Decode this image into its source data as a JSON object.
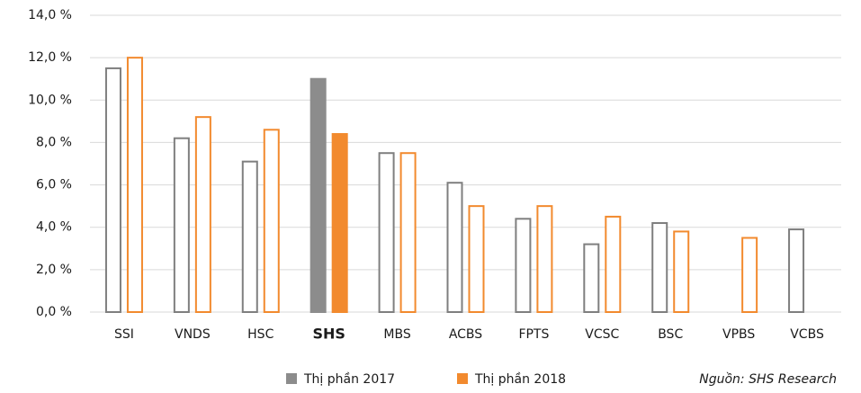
{
  "chart_data": {
    "type": "bar",
    "categories": [
      "SSI",
      "VNDS",
      "HSC",
      "SHS",
      "MBS",
      "ACBS",
      "FPTS",
      "VCSC",
      "BSC",
      "VPBS",
      "VCBS"
    ],
    "series": [
      {
        "name": "Thị phần 2017",
        "color": "#7f7f7f",
        "highlight_color": "#8c8c8c",
        "values": [
          11.5,
          8.2,
          7.1,
          11.0,
          7.5,
          6.1,
          4.4,
          3.2,
          4.2,
          null,
          3.9
        ]
      },
      {
        "name": "Thị phần 2018",
        "color": "#f28a2e",
        "highlight_color": "#f28a2e",
        "values": [
          12.0,
          9.2,
          8.6,
          8.4,
          7.5,
          5.0,
          5.0,
          4.5,
          3.8,
          3.5,
          null
        ]
      }
    ],
    "highlight": 3,
    "ylim": [
      0,
      14
    ],
    "yticks": [
      {
        "value": 0,
        "label": "0,0 %"
      },
      {
        "value": 2,
        "label": "2,0 %"
      },
      {
        "value": 4,
        "label": "4,0 %"
      },
      {
        "value": 6,
        "label": "6,0 %"
      },
      {
        "value": 8,
        "label": "8,0 %"
      },
      {
        "value": 10,
        "label": "10,0 %"
      },
      {
        "value": 12,
        "label": "12,0 %"
      },
      {
        "value": 14,
        "label": "14,0 %"
      }
    ],
    "grid": true,
    "legend": "bottom",
    "source": "Nguồn: SHS Research"
  }
}
